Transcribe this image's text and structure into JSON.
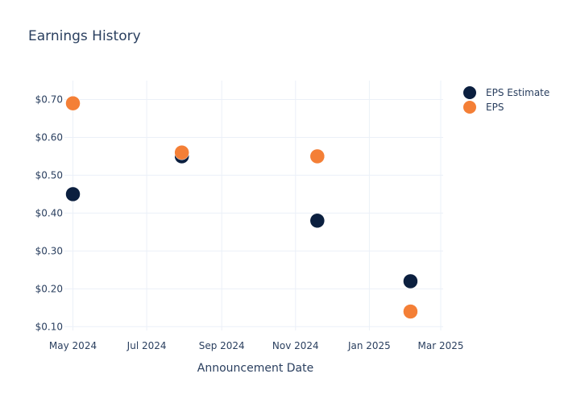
{
  "chart_data": {
    "type": "scatter",
    "title": "Earnings History",
    "xlabel": "Announcement Date",
    "ylabel": "",
    "x_ticks": [
      "May 2024",
      "Jul 2024",
      "Sep 2024",
      "Nov 2024",
      "Jan 2025",
      "Mar 2025"
    ],
    "y_ticks": [
      "$0.10",
      "$0.20",
      "$0.30",
      "$0.40",
      "$0.50",
      "$0.60",
      "$0.70"
    ],
    "xlim": [
      "2024-04-24",
      "2025-03-03"
    ],
    "ylim": [
      0.09,
      0.75
    ],
    "grid": true,
    "legend_position": "top-right",
    "x": [
      "2024-05-01",
      "2024-07-30",
      "2024-11-19",
      "2025-02-04"
    ],
    "series": [
      {
        "name": "EPS Estimate",
        "color": "#0b1f3f",
        "values": [
          0.45,
          0.55,
          0.38,
          0.22
        ]
      },
      {
        "name": "EPS",
        "color": "#f47f36",
        "values": [
          0.69,
          0.56,
          0.55,
          0.14
        ]
      }
    ]
  }
}
